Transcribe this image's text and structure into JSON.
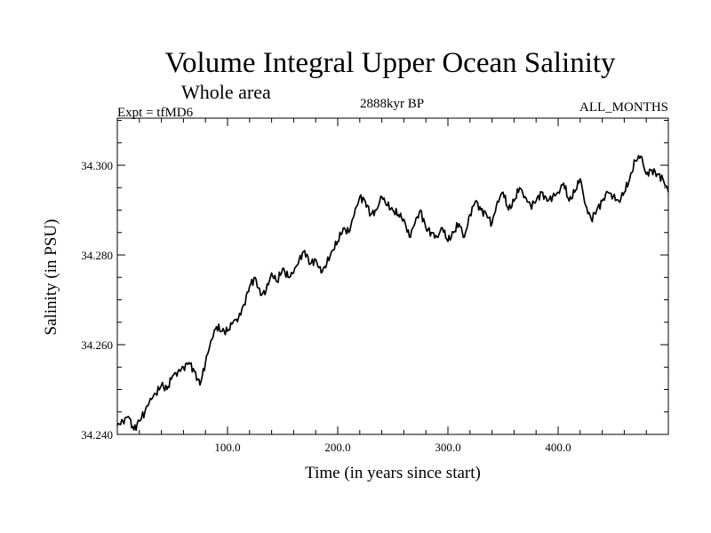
{
  "chart_data": {
    "type": "line",
    "title": "Volume Integral Upper Ocean Salinity",
    "subtitle": "Whole area",
    "experiment": "Expt = tfMD6",
    "period": "2888kyr BP",
    "months": "ALL_MONTHS",
    "xlabel": "Time (in years since start)",
    "ylabel": "Salinity (in PSU)",
    "xlim": [
      0,
      500
    ],
    "ylim": [
      34.24,
      34.3105
    ],
    "xticks": [
      100,
      200,
      300,
      400
    ],
    "xtick_labels": [
      "100.0",
      "200.0",
      "300.0",
      "400.0"
    ],
    "yticks": [
      34.24,
      34.26,
      34.28,
      34.3
    ],
    "ytick_labels": [
      "34.240",
      "34.260",
      "34.280",
      "34.300"
    ],
    "grid": false,
    "series": [
      {
        "name": "Salinity",
        "x": [
          0,
          5,
          10,
          15,
          20,
          25,
          30,
          35,
          40,
          45,
          50,
          55,
          60,
          65,
          70,
          75,
          80,
          85,
          90,
          95,
          100,
          105,
          110,
          115,
          120,
          125,
          130,
          135,
          140,
          145,
          150,
          155,
          160,
          165,
          170,
          175,
          180,
          185,
          190,
          195,
          200,
          205,
          210,
          215,
          220,
          225,
          230,
          235,
          240,
          245,
          250,
          255,
          260,
          265,
          270,
          275,
          280,
          285,
          290,
          295,
          300,
          305,
          310,
          315,
          320,
          325,
          330,
          335,
          340,
          345,
          350,
          355,
          360,
          365,
          370,
          375,
          380,
          385,
          390,
          395,
          400,
          405,
          410,
          415,
          420,
          425,
          430,
          435,
          440,
          445,
          450,
          455,
          460,
          465,
          470,
          475,
          480,
          485,
          490,
          495,
          500
        ],
        "values": [
          34.242,
          34.243,
          34.244,
          34.241,
          34.243,
          34.245,
          34.248,
          34.249,
          34.251,
          34.25,
          34.253,
          34.254,
          34.255,
          34.256,
          34.254,
          34.251,
          34.256,
          34.261,
          34.264,
          34.263,
          34.263,
          34.265,
          34.266,
          34.269,
          34.273,
          34.275,
          34.271,
          34.272,
          34.276,
          34.274,
          34.277,
          34.275,
          34.276,
          34.279,
          34.281,
          34.278,
          34.279,
          34.276,
          34.278,
          34.281,
          34.283,
          34.286,
          34.285,
          34.289,
          34.293,
          34.292,
          34.289,
          34.29,
          34.293,
          34.291,
          34.29,
          34.289,
          34.288,
          34.284,
          34.287,
          34.29,
          34.286,
          34.285,
          34.284,
          34.286,
          34.283,
          34.285,
          34.287,
          34.284,
          34.289,
          34.292,
          34.29,
          34.289,
          34.287,
          34.292,
          34.294,
          34.29,
          34.292,
          34.295,
          34.293,
          34.291,
          34.292,
          34.294,
          34.292,
          34.293,
          34.294,
          34.296,
          34.292,
          34.294,
          34.297,
          34.291,
          34.288,
          34.29,
          34.292,
          34.294,
          34.293,
          34.292,
          34.294,
          34.297,
          34.301,
          34.302,
          34.298,
          34.299,
          34.298,
          34.297,
          34.294
        ]
      }
    ]
  }
}
